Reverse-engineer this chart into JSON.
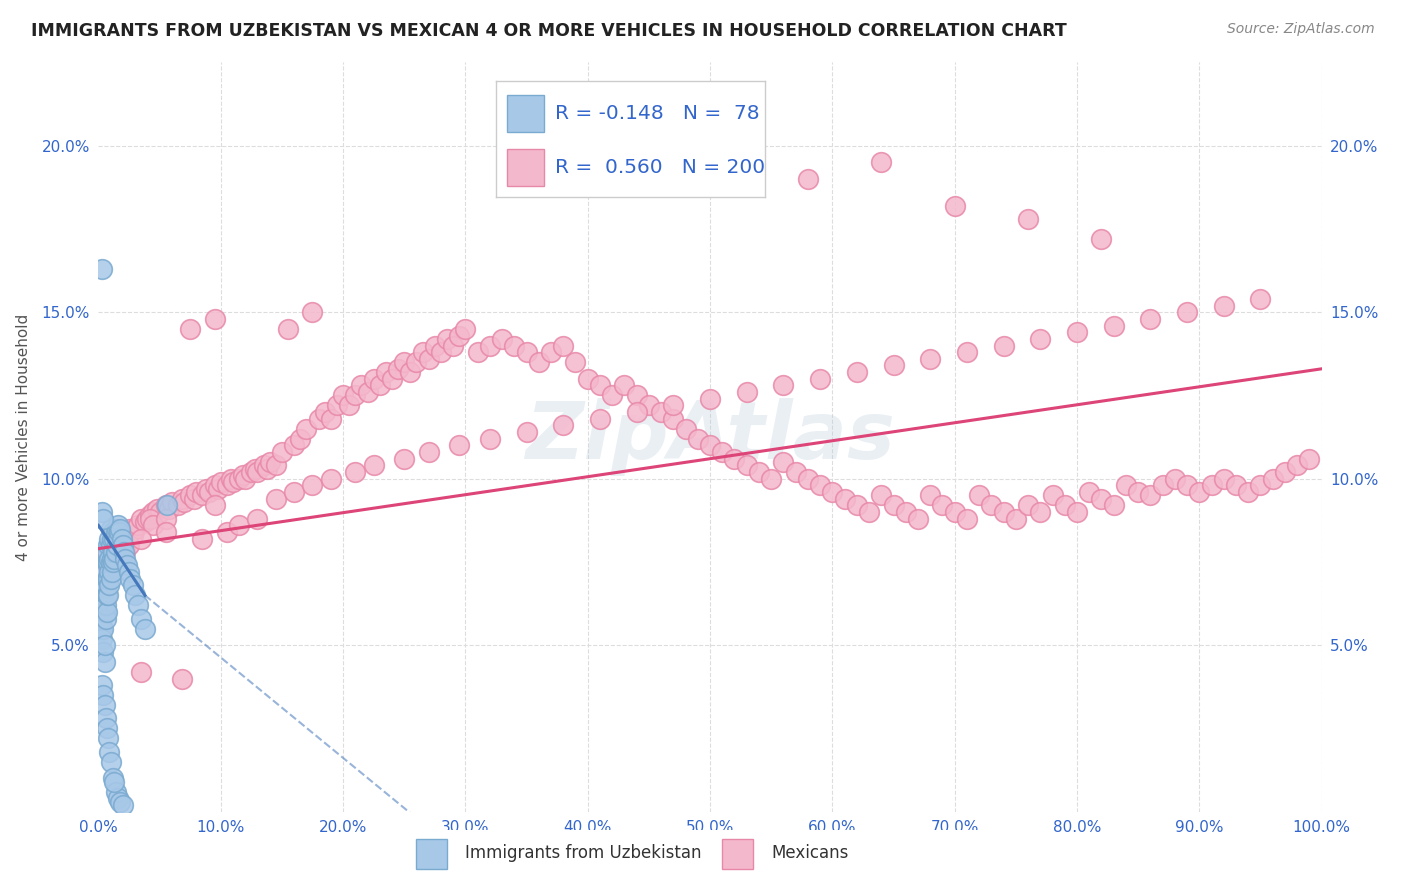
{
  "title": "IMMIGRANTS FROM UZBEKISTAN VS MEXICAN 4 OR MORE VEHICLES IN HOUSEHOLD CORRELATION CHART",
  "source": "Source: ZipAtlas.com",
  "ylabel": "4 or more Vehicles in Household",
  "xlim": [
    0,
    1.0
  ],
  "ylim": [
    0,
    0.225
  ],
  "xticks": [
    0.0,
    0.1,
    0.2,
    0.3,
    0.4,
    0.5,
    0.6,
    0.7,
    0.8,
    0.9,
    1.0
  ],
  "xticklabels": [
    "0.0%",
    "10.0%",
    "20.0%",
    "30.0%",
    "40.0%",
    "50.0%",
    "60.0%",
    "70.0%",
    "80.0%",
    "90.0%",
    "100.0%"
  ],
  "yticks": [
    0.0,
    0.05,
    0.1,
    0.15,
    0.2
  ],
  "yticklabels": [
    "",
    "5.0%",
    "10.0%",
    "15.0%",
    "20.0%"
  ],
  "legend_blue_r": "-0.148",
  "legend_blue_n": "78",
  "legend_pink_r": "0.560",
  "legend_pink_n": "200",
  "legend_blue_label": "Immigrants from Uzbekistan",
  "legend_pink_label": "Mexicans",
  "blue_color": "#a8c8e8",
  "pink_color": "#f4b8cc",
  "blue_edge_color": "#7aaad0",
  "pink_edge_color": "#e888a8",
  "blue_line_color": "#4477bb",
  "pink_line_color": "#dd4477",
  "tick_color": "#3366cc",
  "axis_label_color": "#555555",
  "grid_color": "#dddddd",
  "title_color": "#222222",
  "source_color": "#888888",
  "background_color": "#ffffff",
  "watermark_color": "#ccddeebb",
  "blue_scatter_x": [
    0.002,
    0.003,
    0.003,
    0.003,
    0.004,
    0.004,
    0.004,
    0.005,
    0.005,
    0.005,
    0.005,
    0.006,
    0.006,
    0.006,
    0.006,
    0.007,
    0.007,
    0.007,
    0.007,
    0.007,
    0.008,
    0.008,
    0.008,
    0.008,
    0.009,
    0.009,
    0.009,
    0.009,
    0.01,
    0.01,
    0.01,
    0.01,
    0.011,
    0.011,
    0.011,
    0.012,
    0.012,
    0.012,
    0.013,
    0.013,
    0.014,
    0.014,
    0.015,
    0.015,
    0.016,
    0.016,
    0.017,
    0.018,
    0.019,
    0.02,
    0.021,
    0.022,
    0.023,
    0.025,
    0.026,
    0.028,
    0.03,
    0.032,
    0.035,
    0.038,
    0.003,
    0.004,
    0.005,
    0.006,
    0.007,
    0.008,
    0.009,
    0.01,
    0.012,
    0.014,
    0.016,
    0.018,
    0.02,
    0.003,
    0.004,
    0.003,
    0.056,
    0.013
  ],
  "blue_scatter_y": [
    0.055,
    0.052,
    0.058,
    0.062,
    0.048,
    0.055,
    0.065,
    0.045,
    0.05,
    0.06,
    0.068,
    0.058,
    0.062,
    0.068,
    0.072,
    0.06,
    0.065,
    0.07,
    0.075,
    0.078,
    0.065,
    0.07,
    0.075,
    0.08,
    0.068,
    0.072,
    0.076,
    0.082,
    0.07,
    0.075,
    0.08,
    0.085,
    0.072,
    0.076,
    0.082,
    0.075,
    0.078,
    0.084,
    0.076,
    0.082,
    0.078,
    0.084,
    0.08,
    0.085,
    0.082,
    0.086,
    0.084,
    0.085,
    0.082,
    0.08,
    0.078,
    0.076,
    0.074,
    0.072,
    0.07,
    0.068,
    0.065,
    0.062,
    0.058,
    0.055,
    0.038,
    0.035,
    0.032,
    0.028,
    0.025,
    0.022,
    0.018,
    0.015,
    0.01,
    0.006,
    0.004,
    0.003,
    0.002,
    0.09,
    0.088,
    0.163,
    0.092,
    0.009
  ],
  "pink_scatter_x": [
    0.005,
    0.008,
    0.01,
    0.012,
    0.015,
    0.018,
    0.02,
    0.022,
    0.025,
    0.028,
    0.03,
    0.032,
    0.035,
    0.038,
    0.04,
    0.042,
    0.045,
    0.048,
    0.05,
    0.055,
    0.058,
    0.06,
    0.065,
    0.068,
    0.07,
    0.075,
    0.078,
    0.08,
    0.085,
    0.088,
    0.09,
    0.095,
    0.098,
    0.1,
    0.105,
    0.108,
    0.11,
    0.115,
    0.118,
    0.12,
    0.125,
    0.128,
    0.13,
    0.135,
    0.138,
    0.14,
    0.145,
    0.15,
    0.155,
    0.16,
    0.165,
    0.17,
    0.175,
    0.18,
    0.185,
    0.19,
    0.195,
    0.2,
    0.205,
    0.21,
    0.215,
    0.22,
    0.225,
    0.23,
    0.235,
    0.24,
    0.245,
    0.25,
    0.255,
    0.26,
    0.265,
    0.27,
    0.275,
    0.28,
    0.285,
    0.29,
    0.295,
    0.3,
    0.31,
    0.32,
    0.33,
    0.34,
    0.35,
    0.36,
    0.37,
    0.38,
    0.39,
    0.4,
    0.41,
    0.42,
    0.43,
    0.44,
    0.45,
    0.46,
    0.47,
    0.48,
    0.49,
    0.5,
    0.51,
    0.52,
    0.53,
    0.54,
    0.55,
    0.56,
    0.57,
    0.58,
    0.59,
    0.6,
    0.61,
    0.62,
    0.63,
    0.64,
    0.65,
    0.66,
    0.67,
    0.68,
    0.69,
    0.7,
    0.71,
    0.72,
    0.73,
    0.74,
    0.75,
    0.76,
    0.77,
    0.78,
    0.79,
    0.8,
    0.81,
    0.82,
    0.83,
    0.84,
    0.85,
    0.86,
    0.87,
    0.88,
    0.89,
    0.9,
    0.91,
    0.92,
    0.93,
    0.94,
    0.95,
    0.96,
    0.97,
    0.98,
    0.99,
    0.042,
    0.068,
    0.035,
    0.022,
    0.015,
    0.045,
    0.055,
    0.095,
    0.085,
    0.105,
    0.115,
    0.13,
    0.145,
    0.16,
    0.175,
    0.19,
    0.21,
    0.225,
    0.25,
    0.27,
    0.295,
    0.32,
    0.35,
    0.38,
    0.41,
    0.44,
    0.47,
    0.5,
    0.53,
    0.56,
    0.59,
    0.62,
    0.65,
    0.68,
    0.71,
    0.74,
    0.77,
    0.8,
    0.83,
    0.86,
    0.89,
    0.92,
    0.95,
    0.025,
    0.035,
    0.055,
    0.075,
    0.095,
    0.58,
    0.64,
    0.7,
    0.76,
    0.82
  ],
  "pink_scatter_y": [
    0.075,
    0.078,
    0.08,
    0.078,
    0.082,
    0.08,
    0.083,
    0.082,
    0.085,
    0.083,
    0.085,
    0.086,
    0.088,
    0.087,
    0.088,
    0.089,
    0.09,
    0.091,
    0.09,
    0.092,
    0.091,
    0.093,
    0.092,
    0.094,
    0.093,
    0.095,
    0.094,
    0.096,
    0.095,
    0.097,
    0.096,
    0.098,
    0.097,
    0.099,
    0.098,
    0.1,
    0.099,
    0.1,
    0.101,
    0.1,
    0.102,
    0.103,
    0.102,
    0.104,
    0.103,
    0.105,
    0.104,
    0.108,
    0.145,
    0.11,
    0.112,
    0.115,
    0.15,
    0.118,
    0.12,
    0.118,
    0.122,
    0.125,
    0.122,
    0.125,
    0.128,
    0.126,
    0.13,
    0.128,
    0.132,
    0.13,
    0.133,
    0.135,
    0.132,
    0.135,
    0.138,
    0.136,
    0.14,
    0.138,
    0.142,
    0.14,
    0.143,
    0.145,
    0.138,
    0.14,
    0.142,
    0.14,
    0.138,
    0.135,
    0.138,
    0.14,
    0.135,
    0.13,
    0.128,
    0.125,
    0.128,
    0.125,
    0.122,
    0.12,
    0.118,
    0.115,
    0.112,
    0.11,
    0.108,
    0.106,
    0.104,
    0.102,
    0.1,
    0.105,
    0.102,
    0.1,
    0.098,
    0.096,
    0.094,
    0.092,
    0.09,
    0.095,
    0.092,
    0.09,
    0.088,
    0.095,
    0.092,
    0.09,
    0.088,
    0.095,
    0.092,
    0.09,
    0.088,
    0.092,
    0.09,
    0.095,
    0.092,
    0.09,
    0.096,
    0.094,
    0.092,
    0.098,
    0.096,
    0.095,
    0.098,
    0.1,
    0.098,
    0.096,
    0.098,
    0.1,
    0.098,
    0.096,
    0.098,
    0.1,
    0.102,
    0.104,
    0.106,
    0.088,
    0.04,
    0.042,
    0.078,
    0.082,
    0.086,
    0.088,
    0.092,
    0.082,
    0.084,
    0.086,
    0.088,
    0.094,
    0.096,
    0.098,
    0.1,
    0.102,
    0.104,
    0.106,
    0.108,
    0.11,
    0.112,
    0.114,
    0.116,
    0.118,
    0.12,
    0.122,
    0.124,
    0.126,
    0.128,
    0.13,
    0.132,
    0.134,
    0.136,
    0.138,
    0.14,
    0.142,
    0.144,
    0.146,
    0.148,
    0.15,
    0.152,
    0.154,
    0.08,
    0.082,
    0.084,
    0.145,
    0.148,
    0.19,
    0.195,
    0.182,
    0.178,
    0.172
  ]
}
